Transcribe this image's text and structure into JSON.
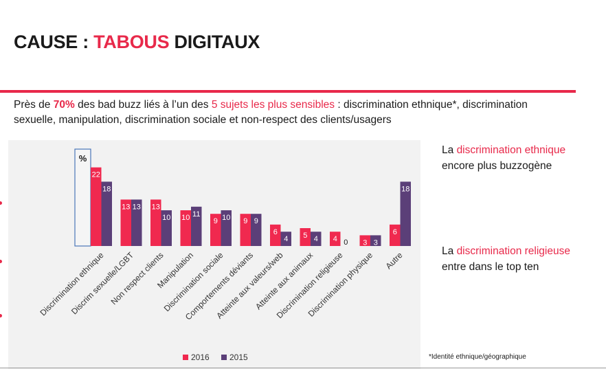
{
  "title": {
    "prefix": "CAUSE : ",
    "accent": "TABOUS",
    "suffix": " DIGITAUX"
  },
  "subtitle": {
    "part1": "Près de ",
    "pct": "70%",
    "part2": " des bad buzz liés à l’un des ",
    "topics": "5 sujets les plus sensibles",
    "part3": " : discrimination ethnique*, discrimination sexuelle, manipulation, discrimination sociale et non-respect des clients/usagers"
  },
  "notes": {
    "n1_pre": "La ",
    "n1_hl": "discrimination ethnique",
    "n1_post": " encore plus buzzogène",
    "n2_pre": "La ",
    "n2_hl": "discrimination religieuse",
    "n2_post": " entre dans le top ten"
  },
  "footnote": "*Identité ethnique/géographique",
  "colors": {
    "accent": "#e8294a",
    "s2016": "#f0294f",
    "s2015": "#5b3f78"
  },
  "chart_data": {
    "type": "bar",
    "unit_label": "%",
    "categories": [
      "Discrimination ethnique",
      "Discrim  sexuelle/LGBT",
      "Non respect clients",
      "Manipulation",
      "Discrimination sociale",
      "Comportements déviants",
      "Atteinte aux valeurs/web",
      "Atteinte aux animaux",
      "Discrimination religieuse",
      "Discrimination physique",
      "Autre"
    ],
    "series": [
      {
        "name": "2016",
        "values": [
          22,
          13,
          13,
          10,
          9,
          9,
          6,
          5,
          4,
          3,
          6
        ],
        "labels": [
          "22",
          "13",
          "13",
          "10",
          "9",
          "9",
          "6",
          "5",
          "4",
          "3",
          "6"
        ]
      },
      {
        "name": "2015",
        "values": [
          18,
          13,
          10,
          11,
          10,
          9,
          4,
          4,
          0,
          3,
          18
        ],
        "labels": [
          "18",
          "13",
          "10",
          "11",
          "10",
          "9",
          "4",
          "4",
          "0",
          "3",
          "18"
        ]
      }
    ],
    "ylim": [
      0,
      24
    ],
    "grid": false,
    "legend_position": "bottom"
  }
}
